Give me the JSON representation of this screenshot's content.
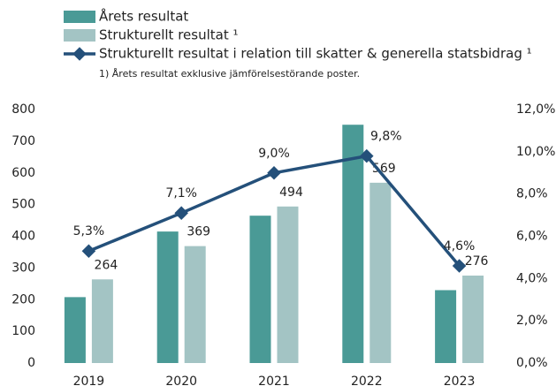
{
  "chart_data": {
    "type": "bar",
    "categories": [
      "2019",
      "2020",
      "2021",
      "2022",
      "2023"
    ],
    "series": [
      {
        "name": "Årets resultat",
        "color": "#4a9a96",
        "values": [
          208,
          415,
          465,
          752,
          230
        ]
      },
      {
        "name": "Strukturellt resultat ¹",
        "color": "#a3c4c4",
        "values": [
          264,
          369,
          494,
          569,
          276
        ]
      },
      {
        "name": "Strukturellt resultat i relation till skatter & generella statsbidrag ¹",
        "type": "line",
        "axis": "y2",
        "color": "#24507a",
        "values": [
          5.3,
          7.1,
          9.0,
          9.8,
          4.6
        ],
        "value_labels": [
          "5,3%",
          "7,1%",
          "9,0%",
          "9,8%",
          "4,6%"
        ]
      }
    ],
    "footnote": "1)  Årets resultat exklusive jämförelsestörande poster.",
    "ylim": [
      0,
      800
    ],
    "yticks": [
      0,
      100,
      200,
      300,
      400,
      500,
      600,
      700,
      800
    ],
    "y2lim": [
      0,
      12
    ],
    "y2ticks": [
      {
        "value": 0,
        "label": "0,0%"
      },
      {
        "value": 2,
        "label": "2,0%"
      },
      {
        "value": 4,
        "label": "4,0%"
      },
      {
        "value": 6,
        "label": "6,0%"
      },
      {
        "value": 8,
        "label": "8,0%"
      },
      {
        "value": 10,
        "label": "10,0%"
      },
      {
        "value": 12,
        "label": "12,0%"
      }
    ],
    "grid": false
  }
}
